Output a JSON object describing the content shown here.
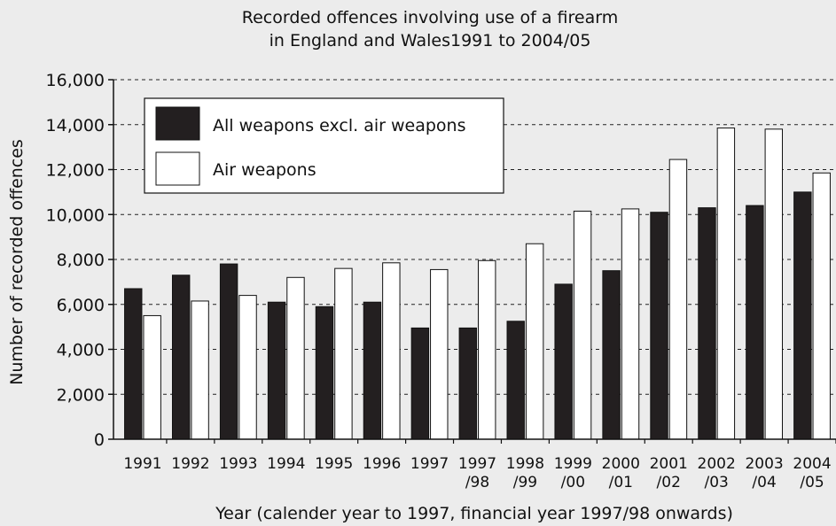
{
  "chart_data": {
    "type": "bar",
    "title": "Recorded offences involving use of a firearm",
    "subtitle": "in England and Wales1991 to 2004/05",
    "xlabel": "Year (calender year to 1997, financial year 1997/98 onwards)",
    "ylabel": "Number of recorded offences",
    "ylim": [
      0,
      16000
    ],
    "yticks": [
      "0",
      "2,000",
      "4,000",
      "6,000",
      "8,000",
      "10,000",
      "12,000",
      "14,000",
      "16,000"
    ],
    "grid": "horizontal dashed",
    "legend_position": "top-left",
    "categories": [
      [
        "1991"
      ],
      [
        "1992"
      ],
      [
        "1993"
      ],
      [
        "1994"
      ],
      [
        "1995"
      ],
      [
        "1996"
      ],
      [
        "1997"
      ],
      [
        "1997",
        "/98"
      ],
      [
        "1998",
        "/99"
      ],
      [
        "1999",
        "/00"
      ],
      [
        "2000",
        "/01"
      ],
      [
        "2001",
        "/02"
      ],
      [
        "2002",
        "/03"
      ],
      [
        "2003",
        "/04"
      ],
      [
        "2004",
        "/05"
      ]
    ],
    "series": [
      {
        "name": "All weapons excl. air weapons",
        "color": "#231f20",
        "values": [
          6700,
          7300,
          7800,
          6100,
          5900,
          6100,
          4950,
          4950,
          5250,
          6900,
          7500,
          10100,
          10300,
          10400,
          11000
        ]
      },
      {
        "name": "Air weapons",
        "color": "#ffffff",
        "values": [
          5500,
          6150,
          6400,
          7200,
          7600,
          7850,
          7550,
          7950,
          8700,
          10150,
          10250,
          12450,
          13850,
          13800,
          11850
        ]
      }
    ]
  }
}
